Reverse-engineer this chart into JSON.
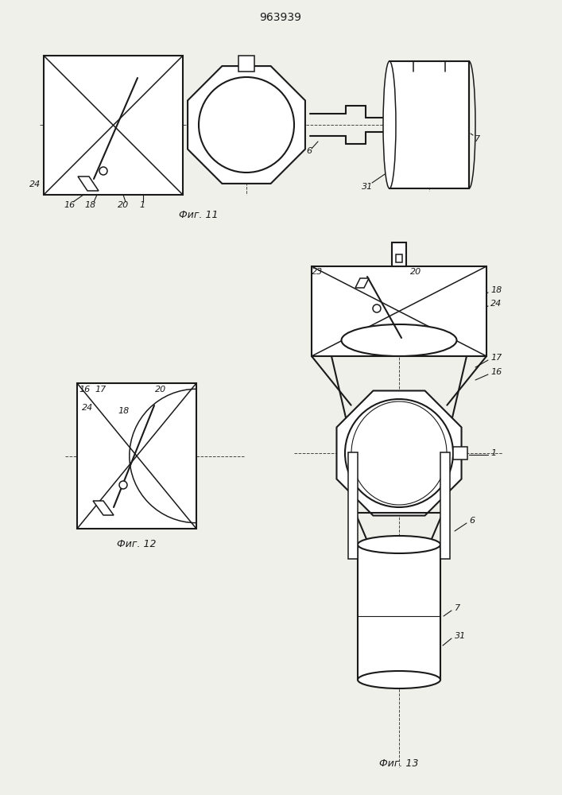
{
  "title": "963939",
  "title_fontsize": 10,
  "fig_width": 7.07,
  "fig_height": 10.0,
  "bg_color": "#f0f0eb",
  "line_color": "#1a1a1a",
  "fig11_label": "Фиг. 11",
  "fig12_label": "Фиг. 12",
  "fig13_label": "Фиг. 13"
}
